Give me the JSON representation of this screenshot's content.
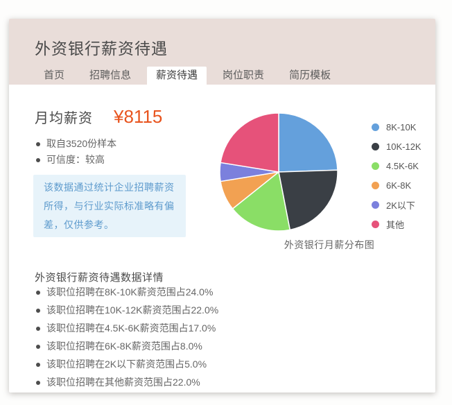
{
  "header": {
    "title": "外资银行薪资待遇"
  },
  "tabs": [
    {
      "label": "首页"
    },
    {
      "label": "招聘信息"
    },
    {
      "label": "薪资待遇"
    },
    {
      "label": "岗位职责"
    },
    {
      "label": "简历模板"
    }
  ],
  "summary": {
    "label": "月均薪资",
    "value": "¥8115",
    "value_color": "#e8541e",
    "facts": [
      "取自3520份样本",
      "可信度：较高"
    ]
  },
  "notice": {
    "text": "该数据通过统计企业招聘薪资所得，与行业实际标准略有偏差，仅供参考。"
  },
  "chart_data": {
    "type": "pie",
    "title": "外资银行月薪分布图",
    "categories": [
      "8K-10K",
      "10K-12K",
      "4.5K-6K",
      "6K-8K",
      "2K以下",
      "其他"
    ],
    "values": [
      24.0,
      22.0,
      17.0,
      8.0,
      5.0,
      22.0
    ],
    "unit": "%",
    "colors": [
      "#64a0dc",
      "#3a3f45",
      "#8ade66",
      "#f2a152",
      "#7b80dd",
      "#e6527a"
    ],
    "start_angle": "top",
    "direction": "clockwise",
    "legend_position": "right",
    "slice_border_color": "#ffffff"
  },
  "details": {
    "title": "外资银行薪资待遇数据详情",
    "items": [
      "该职位招聘在8K-10K薪资范围占24.0%",
      "该职位招聘在10K-12K薪资范围占22.0%",
      "该职位招聘在4.5K-6K薪资范围占17.0%",
      "该职位招聘在6K-8K薪资范围占8.0%",
      "该职位招聘在2K以下薪资范围占5.0%",
      "该职位招聘在其他薪资范围占22.0%"
    ]
  }
}
